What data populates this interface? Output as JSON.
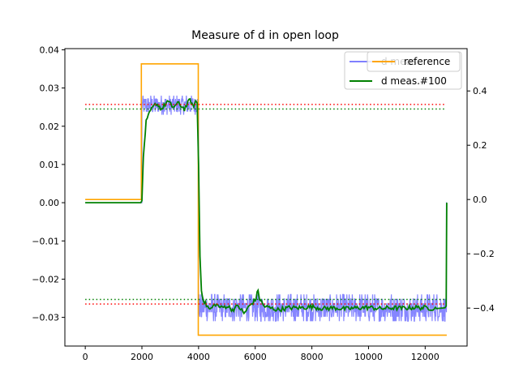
{
  "chart_data": {
    "type": "line",
    "title": "Measure of d in open loop",
    "xlabel": "",
    "ylabel": "",
    "x_ticks": [
      0,
      2000,
      4000,
      6000,
      8000,
      10000,
      12000
    ],
    "x_tick_labels": [
      "0",
      "2000",
      "4000",
      "6000",
      "8000",
      "10000",
      "12000"
    ],
    "xlim": [
      -720,
      13480
    ],
    "y_left": {
      "lim": [
        -0.0375,
        0.0403
      ],
      "ticks": [
        -0.03,
        -0.02,
        -0.01,
        0.0,
        0.01,
        0.02,
        0.03,
        0.04
      ],
      "tick_labels": [
        "−0.03",
        "−0.02",
        "−0.01",
        "0.00",
        "0.01",
        "0.02",
        "0.03",
        "0.04"
      ]
    },
    "y_right": {
      "lim": [
        -0.54,
        0.556
      ],
      "ticks": [
        -0.4,
        -0.2,
        0.0,
        0.2,
        0.4
      ],
      "tick_labels": [
        "−0.4",
        "−0.2",
        "0.0",
        "0.2",
        "0.4"
      ]
    },
    "grid": false,
    "legend_left": {
      "placement": "top-right",
      "entries": [
        {
          "label": "d meas.",
          "color": "#8080ff"
        },
        {
          "label": "d meas.#100",
          "color": "#008000"
        }
      ]
    },
    "legend_right": {
      "placement": "top-right",
      "entries": [
        {
          "label": "reference",
          "color": "#ffa500"
        }
      ]
    },
    "series": [
      {
        "name": "d meas.",
        "axis": "left",
        "color": "#8080ff",
        "style": "noisy",
        "segments": [
          {
            "x": [
              0,
              2000
            ],
            "level": 0.0,
            "noise": 0.0
          },
          {
            "x": [
              2000,
              4000
            ],
            "level": 0.0255,
            "noise": 0.0025
          },
          {
            "x": [
              4000,
              12750
            ],
            "level": -0.0275,
            "noise": 0.0035
          },
          {
            "x": [
              12750,
              12760
            ],
            "level": 0.0,
            "noise": 0.0
          }
        ]
      },
      {
        "name": "d meas.#100",
        "axis": "left",
        "color": "#008000",
        "style": "line",
        "x": [
          0,
          1960,
          2000,
          2050,
          2150,
          2300,
          2500,
          2700,
          2900,
          3100,
          3300,
          3500,
          3700,
          3800,
          3900,
          3950,
          4000,
          4050,
          4100,
          4200,
          4400,
          4600,
          4800,
          5000,
          5200,
          5400,
          5600,
          5800,
          6000,
          6100,
          6150,
          6300,
          6500,
          6800,
          7200,
          7600,
          8000,
          8400,
          8800,
          9200,
          9600,
          10000,
          10400,
          10800,
          11200,
          11600,
          12000,
          12400,
          12700,
          12740,
          12760
        ],
        "y": [
          0.0,
          0.0,
          0.0005,
          0.012,
          0.021,
          0.024,
          0.026,
          0.0245,
          0.0265,
          0.025,
          0.026,
          0.0245,
          0.027,
          0.025,
          0.0265,
          0.026,
          0.01,
          -0.014,
          -0.023,
          -0.026,
          -0.028,
          -0.0265,
          -0.0275,
          -0.027,
          -0.028,
          -0.027,
          -0.029,
          -0.027,
          -0.0255,
          -0.023,
          -0.025,
          -0.027,
          -0.0275,
          -0.028,
          -0.0275,
          -0.0275,
          -0.0272,
          -0.0277,
          -0.0275,
          -0.0278,
          -0.0275,
          -0.0274,
          -0.0277,
          -0.0275,
          -0.0276,
          -0.0274,
          -0.0275,
          -0.0277,
          -0.0275,
          -0.027,
          0.0
        ]
      },
      {
        "name": "reference",
        "axis": "right",
        "color": "#ffa500",
        "style": "step",
        "x": [
          0,
          1980,
          1980,
          3990,
          3990,
          12760
        ],
        "y": [
          0.0,
          0.0,
          0.5,
          0.5,
          -0.5,
          -0.5
        ]
      }
    ],
    "reference_lines": [
      {
        "axis": "left",
        "y": 0.0257,
        "x": [
          0,
          12750
        ],
        "color": "#ff0000",
        "style": "dotted"
      },
      {
        "axis": "left",
        "y": 0.0245,
        "x": [
          0,
          12750
        ],
        "color": "#008000",
        "style": "dotted"
      },
      {
        "axis": "left",
        "y": -0.0253,
        "x": [
          0,
          12750
        ],
        "color": "#008000",
        "style": "dotted"
      },
      {
        "axis": "left",
        "y": -0.0265,
        "x": [
          0,
          12750
        ],
        "color": "#ff0000",
        "style": "dotted"
      }
    ]
  }
}
